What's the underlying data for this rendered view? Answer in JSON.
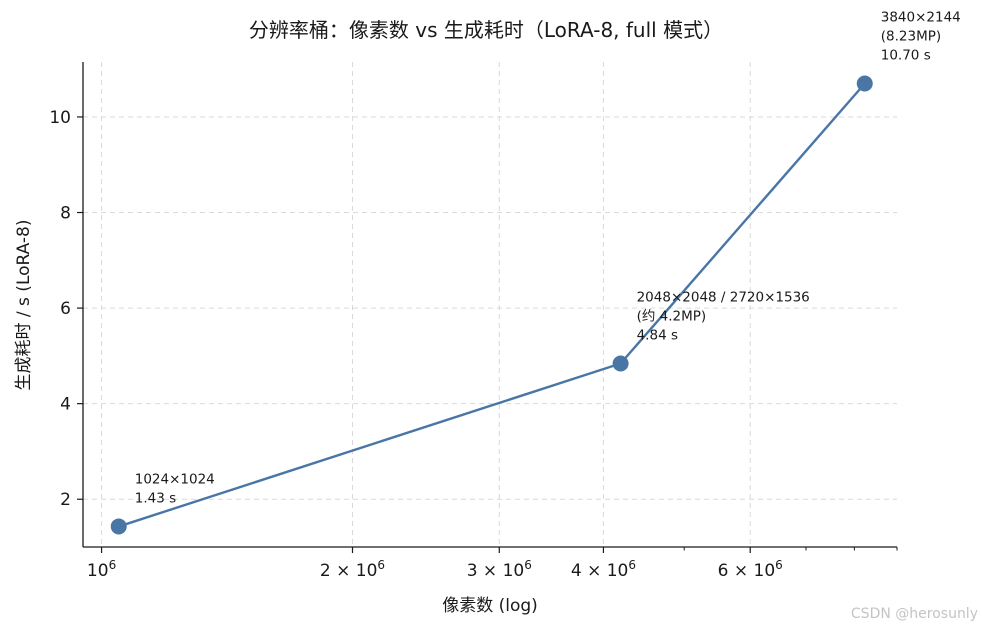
{
  "chart_data": {
    "type": "line",
    "title": "分辨率桶：像素数 vs 生成耗时（LoRA-8, full 模式）",
    "xlabel": "像素数 (log)",
    "ylabel": "生成耗时 / s (LoRA-8)",
    "x_scale": "log",
    "xlim": [
      950000,
      9000000
    ],
    "ylim": [
      1.0,
      11.15
    ],
    "x_major_ticks": [
      {
        "value": 1000000,
        "base": "10",
        "exp": "6"
      },
      {
        "value": 2000000,
        "base": "2 × 10",
        "exp": "6"
      },
      {
        "value": 3000000,
        "base": "3 × 10",
        "exp": "6"
      },
      {
        "value": 4000000,
        "base": "4 × 10",
        "exp": "6"
      },
      {
        "value": 6000000,
        "base": "6 × 10",
        "exp": "6"
      }
    ],
    "x_minor_ticks": [
      5000000,
      7000000,
      8000000,
      9000000
    ],
    "y_ticks": [
      2,
      4,
      6,
      8,
      10
    ],
    "grid": true,
    "color": "#4a76a6",
    "series": [
      {
        "x": [
          1048576,
          4194304,
          8232960
        ],
        "y": [
          1.43,
          4.84,
          10.7
        ]
      }
    ],
    "annotations": [
      {
        "lines": [
          "1024×1024",
          "1.43 s"
        ]
      },
      {
        "lines": [
          "2048×2048 / 2720×1536",
          "(约 4.2MP)",
          "4.84 s"
        ]
      },
      {
        "lines": [
          "3840×2144",
          "(8.23MP)",
          "10.70 s"
        ]
      }
    ]
  },
  "watermark": "CSDN @herosunly"
}
